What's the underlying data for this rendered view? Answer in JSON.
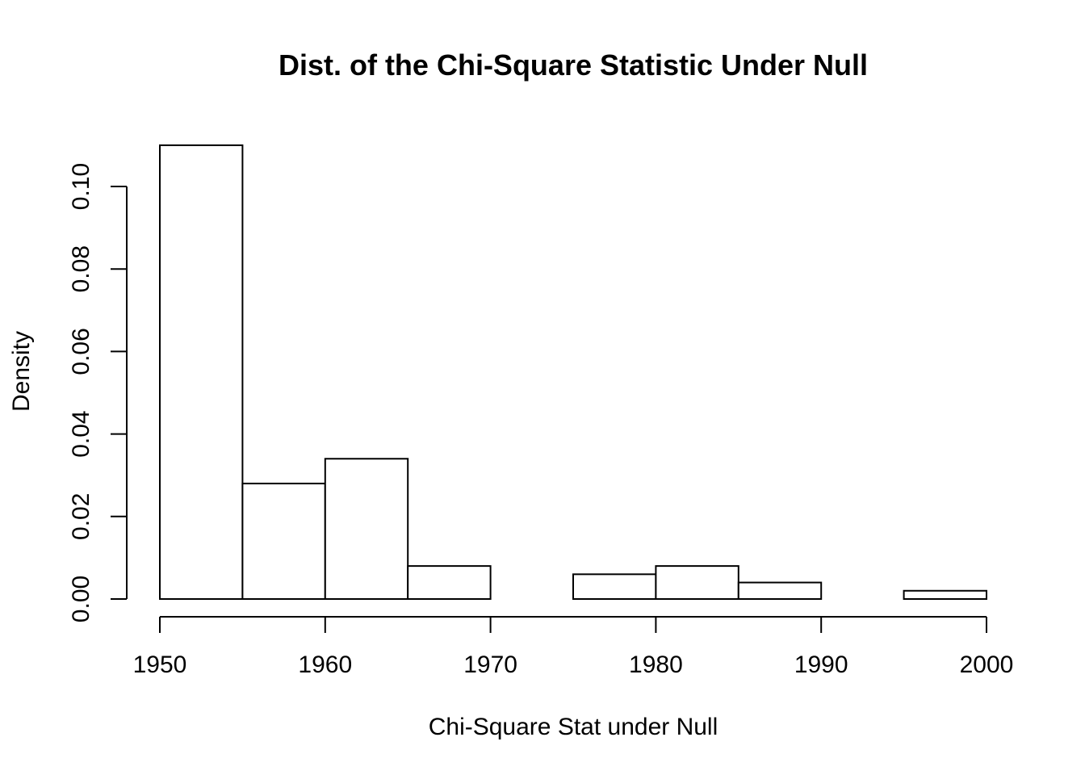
{
  "chart_data": {
    "type": "bar",
    "title": "Dist. of the Chi-Square Statistic Under Null",
    "xlabel": "Chi-Square Stat under Null",
    "ylabel": "Density",
    "bins": [
      {
        "start": 1950,
        "end": 1955,
        "value": 0.11
      },
      {
        "start": 1955,
        "end": 1960,
        "value": 0.028
      },
      {
        "start": 1960,
        "end": 1965,
        "value": 0.034
      },
      {
        "start": 1965,
        "end": 1970,
        "value": 0.008
      },
      {
        "start": 1970,
        "end": 1975,
        "value": 0.0
      },
      {
        "start": 1975,
        "end": 1980,
        "value": 0.006
      },
      {
        "start": 1980,
        "end": 1985,
        "value": 0.008
      },
      {
        "start": 1985,
        "end": 1990,
        "value": 0.004
      },
      {
        "start": 1990,
        "end": 1995,
        "value": 0.0
      },
      {
        "start": 1995,
        "end": 2000,
        "value": 0.002
      }
    ],
    "xlim": [
      1950,
      2000
    ],
    "ylim": [
      0,
      0.1
    ],
    "x_ticks": [
      "1950",
      "1960",
      "1970",
      "1980",
      "1990",
      "2000"
    ],
    "y_ticks": [
      "0.00",
      "0.02",
      "0.04",
      "0.06",
      "0.08",
      "0.10"
    ],
    "grid": false,
    "legend": "none",
    "colors": {
      "bar_fill": "#ffffff",
      "bar_stroke": "#000000",
      "text": "#000000",
      "background": "#ffffff"
    }
  }
}
